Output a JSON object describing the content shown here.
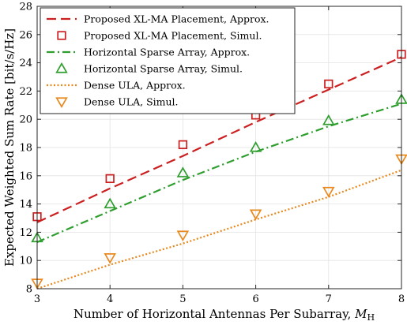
{
  "chart_data": {
    "type": "line",
    "xlabel": "Number of Horizontal Antennas Per Subarray, ",
    "xlabel_symbol": "M",
    "xlabel_subscript": "H",
    "ylabel": "Expected Weighted Sum Rate [bit/s/Hz]",
    "xlim": [
      3,
      8
    ],
    "ylim": [
      8,
      28
    ],
    "xticks": [
      3,
      4,
      5,
      6,
      7,
      8
    ],
    "yticks": [
      8,
      10,
      12,
      14,
      16,
      18,
      20,
      22,
      24,
      26,
      28
    ],
    "grid": true,
    "legend_position": "top-left",
    "series": [
      {
        "name": "Proposed XL-MA Placement, Approx.",
        "style": "dashed",
        "marker": "none",
        "color": "#cc1f1f",
        "x": [
          3,
          4,
          5,
          6,
          7,
          8
        ],
        "values": [
          12.7,
          15.1,
          17.4,
          19.8,
          22.1,
          24.4
        ]
      },
      {
        "name": "Proposed XL-MA Placement, Simul.",
        "style": "none",
        "marker": "square",
        "color": "#cc1f1f",
        "x": [
          3,
          4,
          5,
          6,
          7,
          8
        ],
        "values": [
          13.1,
          15.8,
          18.2,
          20.3,
          22.5,
          24.6
        ]
      },
      {
        "name": "Horizontal Sparse Array, Approx.",
        "style": "dashdot",
        "marker": "none",
        "color": "#2e9e2e",
        "x": [
          3,
          4,
          5,
          6,
          7,
          8
        ],
        "values": [
          11.3,
          13.5,
          15.7,
          17.7,
          19.5,
          21.1
        ]
      },
      {
        "name": "Horizontal Sparse Array, Simul.",
        "style": "none",
        "marker": "triangle-up",
        "color": "#2e9e2e",
        "x": [
          3,
          4,
          5,
          6,
          7,
          8
        ],
        "values": [
          11.6,
          14.0,
          16.2,
          18.0,
          19.9,
          21.4
        ]
      },
      {
        "name": "Dense ULA, Approx.",
        "style": "dotted",
        "marker": "none",
        "color": "#e8891e",
        "x": [
          3,
          4,
          5,
          6,
          7,
          8
        ],
        "values": [
          8.0,
          9.7,
          11.2,
          12.9,
          14.5,
          16.4
        ]
      },
      {
        "name": "Dense ULA, Simul.",
        "style": "none",
        "marker": "triangle-down",
        "color": "#e8891e",
        "x": [
          3,
          4,
          5,
          6,
          7,
          8
        ],
        "values": [
          8.4,
          10.2,
          11.8,
          13.3,
          14.9,
          17.2
        ]
      }
    ]
  }
}
